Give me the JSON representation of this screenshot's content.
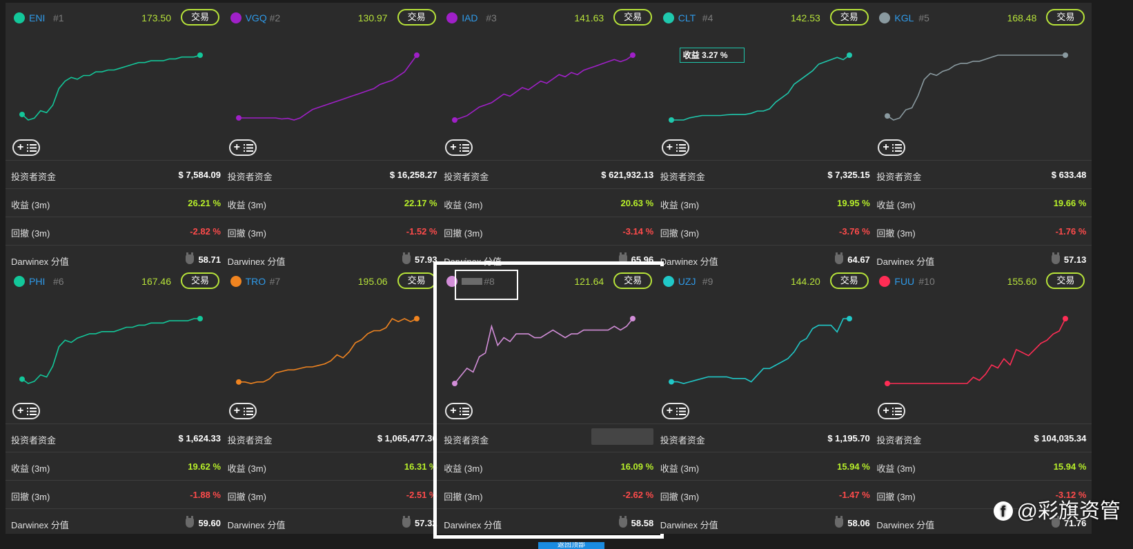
{
  "labels": {
    "trade_button": "交易",
    "investor_funds": "投资者资金",
    "return_3m": "收益 (3m)",
    "drawdown_3m": "回撤 (3m)",
    "darwinex_score": "Darwinex 分值"
  },
  "cards": [
    {
      "name": "ENI",
      "rank": "#1",
      "price": "173.50",
      "color": "#13c79a",
      "funds": "$ 7,584.09",
      "return": "26.21 %",
      "drawdown": "-2.82 %",
      "score": "58.71",
      "series": [
        100,
        97,
        98,
        102,
        101,
        105,
        114,
        118,
        120,
        119,
        121,
        121,
        123,
        123,
        124,
        124,
        125,
        126,
        127,
        128,
        128,
        129,
        129,
        129,
        130,
        130,
        131,
        131,
        131,
        132
      ]
    },
    {
      "name": "VGQ",
      "rank": "#2",
      "price": "130.97",
      "color": "#a020c8",
      "funds": "$ 16,258.27",
      "return": "22.17 %",
      "drawdown": "-1.52 %",
      "score": "57.93",
      "series": [
        100,
        100,
        100,
        100,
        100,
        100,
        100,
        99.5,
        99.8,
        99,
        100,
        102,
        104,
        105,
        106,
        107,
        108,
        109,
        110,
        111,
        112,
        113,
        114,
        116,
        117,
        118,
        120,
        122,
        126,
        130
      ]
    },
    {
      "name": "IAD",
      "rank": "#3",
      "price": "141.63",
      "color": "#a020c8",
      "funds": "$ 621,932.13",
      "return": "20.63 %",
      "drawdown": "-3.14 %",
      "score": "65.96",
      "series": [
        100,
        101,
        102,
        104,
        106,
        107,
        108,
        110,
        112,
        111,
        113,
        115,
        114,
        116,
        118,
        117,
        119,
        121,
        120,
        122,
        121,
        123,
        124,
        125,
        126,
        127,
        128,
        127,
        128,
        130
      ]
    },
    {
      "name": "CLT",
      "rank": "#4",
      "price": "142.53",
      "color": "#1fc8ad",
      "funds": "$ 7,325.15",
      "return": "19.95 %",
      "drawdown": "-3.76 %",
      "score": "64.67",
      "tooltip": "收益 3.27 %",
      "series": [
        100,
        100,
        100,
        101,
        101.5,
        102,
        102,
        102,
        102,
        102.3,
        102.5,
        102.5,
        102.5,
        103,
        104,
        104,
        105,
        108,
        110,
        112,
        116,
        118,
        120,
        122,
        125,
        126,
        127,
        128,
        127,
        129
      ]
    },
    {
      "name": "KGL",
      "rank": "#5",
      "price": "168.48",
      "color": "#8a9aa0",
      "funds": "$ 633.48",
      "return": "19.66 %",
      "drawdown": "-1.76 %",
      "score": "57.13",
      "series": [
        100,
        98,
        99,
        103,
        104,
        110,
        118,
        121,
        120,
        122,
        123,
        125,
        126,
        126,
        127,
        127,
        128,
        129,
        130,
        130,
        130,
        130,
        130,
        130,
        130,
        130,
        130,
        130,
        130,
        130
      ]
    },
    {
      "name": "PHI",
      "rank": "#6",
      "price": "167.46",
      "color": "#13c79a",
      "funds": "$ 1,624.33",
      "return": "19.62 %",
      "drawdown": "-1.88 %",
      "score": "59.60",
      "series": [
        100,
        98,
        99,
        102,
        101,
        106,
        115,
        118,
        117,
        119,
        120,
        121,
        121,
        122,
        122,
        122,
        123,
        124,
        124,
        125,
        125,
        126,
        126,
        126,
        127,
        127,
        127,
        127,
        128,
        128
      ]
    },
    {
      "name": "TRO",
      "rank": "#7",
      "price": "195.06",
      "color": "#f08420",
      "funds": "$ 1,065,477.36",
      "return": "16.31 %",
      "drawdown": "-2.51 %",
      "score": "57.32",
      "series": [
        100,
        100,
        99.5,
        100,
        100,
        101,
        103,
        103.5,
        104,
        104,
        104.5,
        105,
        105,
        105.5,
        106,
        107,
        109,
        108,
        110,
        113,
        114,
        116,
        117,
        117,
        118,
        121,
        120,
        121,
        120,
        121
      ]
    },
    {
      "name": "",
      "rank": "#8",
      "price": "121.64",
      "color": "#d38ed9",
      "funds": "",
      "return": "16.09 %",
      "drawdown": "-2.62 %",
      "score": "58.58",
      "selected": true,
      "series": [
        100,
        102,
        104,
        103,
        107,
        108,
        115,
        110,
        112,
        111,
        113,
        113,
        113,
        112,
        112,
        113,
        114,
        113,
        112,
        113,
        113,
        114,
        114,
        114,
        114,
        114,
        115,
        114,
        115,
        117
      ]
    },
    {
      "name": "UZJ",
      "rank": "#9",
      "price": "144.20",
      "color": "#20c8c8",
      "funds": "$ 1,195.70",
      "return": "15.94 %",
      "drawdown": "-1.47 %",
      "score": "58.06",
      "series": [
        100,
        100,
        99.5,
        100,
        100.5,
        101,
        101.5,
        101.5,
        101.5,
        101.5,
        101,
        101,
        101,
        100,
        102,
        104,
        104,
        105,
        106,
        107,
        109,
        112,
        113,
        116,
        117,
        117,
        117,
        115,
        119,
        119
      ]
    },
    {
      "name": "FUU",
      "rank": "#10",
      "price": "155.60",
      "color": "#ff2d55",
      "funds": "$ 104,035.34",
      "return": "15.94 %",
      "drawdown": "-3.12 %",
      "score": "71.76",
      "series": [
        100,
        100,
        100,
        100,
        100,
        100,
        100,
        100,
        100,
        100,
        100,
        100,
        100,
        100,
        102,
        101,
        103,
        106,
        105,
        108,
        106,
        111,
        110,
        109,
        111,
        113,
        114,
        116,
        117,
        121
      ]
    }
  ],
  "watermark": "@彩旗资管",
  "watermark_icon": "facebook-icon",
  "back_to_top": "返回顶部"
}
